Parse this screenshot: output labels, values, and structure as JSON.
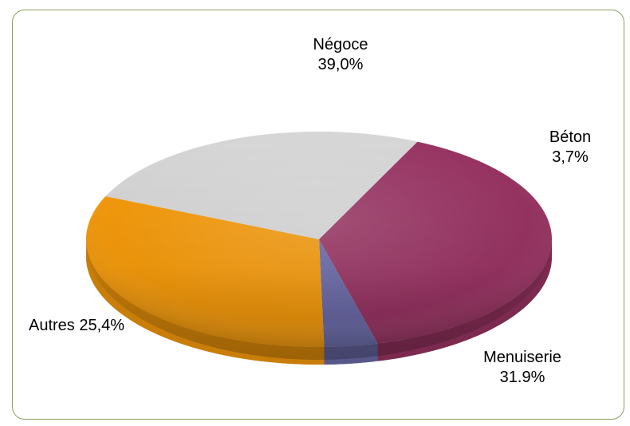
{
  "chart_data": {
    "type": "pie",
    "style": "3d",
    "categories": [
      "Négoce",
      "Béton",
      "Menuiserie",
      "Autres"
    ],
    "values": [
      39.0,
      3.7,
      31.9,
      25.4
    ],
    "value_labels": [
      "39,0%",
      "3,7%",
      "31.9%",
      "25,4%"
    ],
    "colors": [
      "#983362",
      "#6a6aa8",
      "#f59a0b",
      "#d6d6d6"
    ],
    "legend": "none"
  }
}
